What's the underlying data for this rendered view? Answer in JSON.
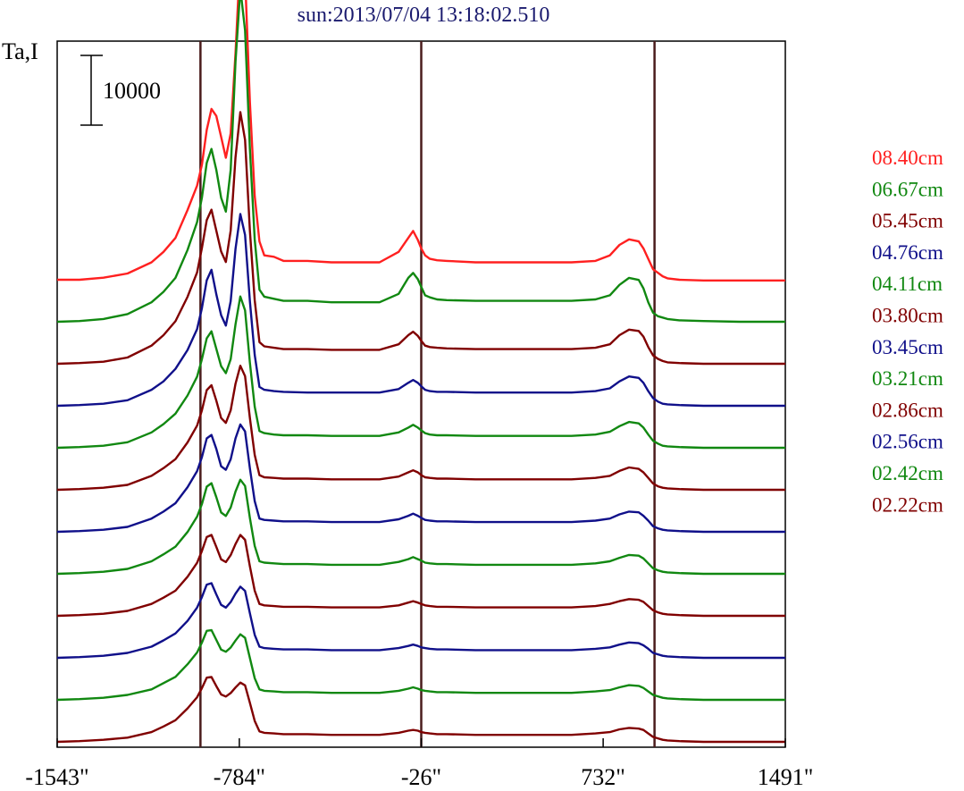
{
  "chart_data": {
    "type": "line",
    "title": "sun:2013/07/04 13:18:02.510",
    "ylabel": "Ta,I",
    "scale_bar_label": "10000",
    "scale_bar_value": 10000,
    "xlim": [
      -1543,
      1491
    ],
    "x_ticks": [
      -1543,
      -784,
      -26,
      732,
      1491
    ],
    "x_tick_labels": [
      "-1543\"",
      "-784\"",
      "-26\"",
      "732\"",
      "1491\""
    ],
    "vertical_lines": [
      -946,
      -26,
      946
    ],
    "grid": false,
    "legend_placement": "right",
    "profile_x": [
      -1543,
      -1450,
      -1350,
      -1250,
      -1150,
      -1100,
      -1050,
      -1000,
      -960,
      -940,
      -920,
      -900,
      -880,
      -860,
      -840,
      -820,
      -800,
      -780,
      -760,
      -740,
      -720,
      -700,
      -680,
      -640,
      -600,
      -500,
      -400,
      -300,
      -200,
      -120,
      -80,
      -60,
      -40,
      -26,
      -10,
      10,
      40,
      80,
      200,
      400,
      600,
      700,
      760,
      800,
      840,
      880,
      900,
      920,
      940,
      960,
      980,
      1000,
      1050,
      1150,
      1300,
      1491
    ],
    "series": [
      {
        "name": "08.40cm",
        "color": "#ff2020",
        "values": [
          6500,
          6500,
          6800,
          7400,
          9000,
          10500,
          12500,
          16500,
          20000,
          23000,
          28000,
          31000,
          30000,
          27000,
          24000,
          27500,
          39000,
          53000,
          50000,
          32000,
          18500,
          12000,
          10000,
          9800,
          9200,
          9200,
          9000,
          9000,
          9000,
          10500,
          12500,
          13500,
          12200,
          11000,
          10000,
          9500,
          9300,
          9200,
          9000,
          9000,
          9000,
          9200,
          10000,
          11500,
          12300,
          12000,
          11000,
          9500,
          8000,
          7500,
          7000,
          6700,
          6500,
          6400,
          6400,
          6400
        ]
      },
      {
        "name": "06.67cm",
        "color": "#118811",
        "values": [
          2200,
          2300,
          2600,
          3300,
          5000,
          6500,
          8500,
          12500,
          16500,
          20000,
          25000,
          27000,
          24000,
          20000,
          18000,
          24000,
          39500,
          50000,
          44000,
          27000,
          14000,
          6800,
          5800,
          5500,
          5200,
          5200,
          5000,
          5000,
          5000,
          6200,
          8500,
          9200,
          8300,
          7200,
          6000,
          5700,
          5400,
          5300,
          5200,
          5200,
          5200,
          5400,
          6000,
          7500,
          8500,
          8200,
          7000,
          5000,
          3500,
          3000,
          2800,
          2600,
          2400,
          2300,
          2200,
          2200
        ]
      },
      {
        "name": "05.45cm",
        "color": "#800000",
        "values": [
          1900,
          2000,
          2200,
          2800,
          4500,
          6000,
          8000,
          11500,
          15000,
          18500,
          22500,
          24000,
          21000,
          18000,
          16500,
          21000,
          31500,
          38000,
          34000,
          21000,
          11000,
          5000,
          4400,
          4200,
          4000,
          4000,
          3900,
          3900,
          3900,
          4700,
          6000,
          6500,
          5900,
          5200,
          4500,
          4300,
          4200,
          4100,
          4000,
          4000,
          4000,
          4200,
          4700,
          6000,
          6800,
          6600,
          5800,
          4300,
          3100,
          2600,
          2300,
          2100,
          2000,
          1900,
          1900,
          1900
        ]
      },
      {
        "name": "04.76cm",
        "color": "#10108a",
        "values": [
          1500,
          1600,
          1800,
          2300,
          3800,
          5000,
          6800,
          9500,
          12500,
          15500,
          19500,
          21000,
          17500,
          14500,
          13000,
          16500,
          24000,
          29000,
          26000,
          16500,
          8800,
          4200,
          3800,
          3600,
          3500,
          3400,
          3400,
          3400,
          3400,
          3900,
          4800,
          5200,
          4800,
          4300,
          3800,
          3600,
          3500,
          3500,
          3400,
          3400,
          3400,
          3600,
          4000,
          5000,
          5700,
          5500,
          4800,
          3600,
          2600,
          2100,
          1800,
          1700,
          1600,
          1500,
          1500,
          1500
        ]
      },
      {
        "name": "04.11cm",
        "color": "#118811",
        "values": [
          1300,
          1400,
          1600,
          2100,
          3500,
          4700,
          6200,
          8800,
          11500,
          14000,
          17000,
          18000,
          15500,
          13000,
          12000,
          14000,
          19000,
          23000,
          21000,
          13500,
          7200,
          3700,
          3400,
          3200,
          3100,
          3100,
          3000,
          3000,
          3000,
          3500,
          4200,
          4600,
          4200,
          3800,
          3400,
          3200,
          3100,
          3100,
          3000,
          3000,
          3000,
          3200,
          3600,
          4400,
          5000,
          4800,
          4200,
          3200,
          2300,
          1900,
          1600,
          1500,
          1400,
          1300,
          1300,
          1300
        ]
      },
      {
        "name": "03.80cm",
        "color": "#800000",
        "values": [
          1200,
          1300,
          1500,
          1900,
          3200,
          4300,
          5600,
          8000,
          10400,
          12600,
          15500,
          16200,
          14000,
          11500,
          10800,
          12600,
          16400,
          19000,
          17500,
          11500,
          6200,
          3300,
          3000,
          2900,
          2800,
          2800,
          2700,
          2700,
          2700,
          3100,
          3700,
          4000,
          3700,
          3300,
          3000,
          2900,
          2800,
          2800,
          2700,
          2700,
          2700,
          2900,
          3200,
          3900,
          4400,
          4200,
          3700,
          2900,
          2100,
          1700,
          1500,
          1400,
          1300,
          1200,
          1200,
          1200
        ]
      },
      {
        "name": "03.45cm",
        "color": "#10108a",
        "values": [
          1100,
          1200,
          1400,
          1800,
          3000,
          4000,
          5200,
          7500,
          9800,
          11800,
          14500,
          15000,
          13000,
          10500,
          10000,
          11500,
          14500,
          16500,
          15500,
          10200,
          5500,
          3000,
          2800,
          2700,
          2600,
          2600,
          2500,
          2500,
          2500,
          2900,
          3400,
          3700,
          3400,
          3100,
          2800,
          2700,
          2600,
          2600,
          2500,
          2500,
          2500,
          2700,
          3000,
          3600,
          4000,
          3900,
          3400,
          2700,
          1900,
          1600,
          1400,
          1300,
          1200,
          1100,
          1100,
          1100
        ]
      },
      {
        "name": "03.21cm",
        "color": "#118811",
        "values": [
          1000,
          1100,
          1300,
          1700,
          2800,
          3800,
          4900,
          7000,
          9200,
          11000,
          13500,
          14000,
          12000,
          9800,
          9300,
          10500,
          12800,
          14500,
          13600,
          9000,
          5000,
          2800,
          2600,
          2500,
          2400,
          2400,
          2300,
          2300,
          2300,
          2700,
          3100,
          3400,
          3100,
          2900,
          2600,
          2500,
          2400,
          2400,
          2300,
          2300,
          2300,
          2500,
          2800,
          3300,
          3700,
          3600,
          3200,
          2500,
          1800,
          1500,
          1300,
          1200,
          1100,
          1000,
          1000,
          1000
        ]
      },
      {
        "name": "02.86cm",
        "color": "#800000",
        "values": [
          900,
          1000,
          1200,
          1600,
          2600,
          3500,
          4500,
          6500,
          8500,
          10200,
          12200,
          12500,
          10800,
          9000,
          8600,
          9600,
          11200,
          12500,
          11800,
          8000,
          4500,
          2600,
          2400,
          2300,
          2200,
          2200,
          2100,
          2100,
          2100,
          2400,
          2800,
          3000,
          2800,
          2600,
          2400,
          2300,
          2200,
          2200,
          2100,
          2100,
          2100,
          2300,
          2600,
          3000,
          3300,
          3200,
          2900,
          2300,
          1700,
          1400,
          1200,
          1100,
          1000,
          900,
          900,
          900
        ]
      },
      {
        "name": "02.56cm",
        "color": "#10108a",
        "values": [
          800,
          900,
          1100,
          1500,
          2400,
          3300,
          4300,
          6100,
          8000,
          9500,
          11300,
          11500,
          9900,
          8400,
          8000,
          8800,
          10000,
          11000,
          10400,
          7200,
          4100,
          2400,
          2200,
          2100,
          2000,
          2000,
          1900,
          1900,
          1900,
          2200,
          2500,
          2700,
          2500,
          2300,
          2200,
          2100,
          2000,
          2000,
          1900,
          1900,
          1900,
          2100,
          2300,
          2700,
          3000,
          2900,
          2600,
          2100,
          1500,
          1300,
          1100,
          1000,
          900,
          800,
          800,
          800
        ]
      },
      {
        "name": "02.42cm",
        "color": "#118811",
        "values": [
          800,
          900,
          1100,
          1500,
          2300,
          3200,
          4100,
          5900,
          7600,
          9000,
          10700,
          10800,
          9400,
          8000,
          7700,
          8300,
          9300,
          10200,
          9700,
          6800,
          3900,
          2300,
          2100,
          2000,
          1900,
          1900,
          1800,
          1800,
          1800,
          2100,
          2400,
          2600,
          2400,
          2200,
          2100,
          2000,
          1900,
          1900,
          1800,
          1800,
          1800,
          2000,
          2200,
          2600,
          2900,
          2800,
          2500,
          2000,
          1500,
          1300,
          1100,
          1000,
          900,
          800,
          800,
          800
        ]
      },
      {
        "name": "02.22cm",
        "color": "#800000",
        "values": [
          700,
          800,
          1000,
          1300,
          2100,
          2900,
          3800,
          5500,
          7100,
          8400,
          9900,
          10000,
          8700,
          7500,
          7200,
          7700,
          8500,
          9200,
          8800,
          6300,
          3700,
          2200,
          2000,
          1900,
          1800,
          1800,
          1700,
          1700,
          1700,
          2000,
          2300,
          2400,
          2300,
          2100,
          2000,
          1900,
          1800,
          1800,
          1700,
          1700,
          1700,
          1900,
          2100,
          2500,
          2700,
          2600,
          2400,
          1900,
          1400,
          1200,
          1000,
          900,
          800,
          700,
          700,
          700
        ]
      }
    ]
  }
}
